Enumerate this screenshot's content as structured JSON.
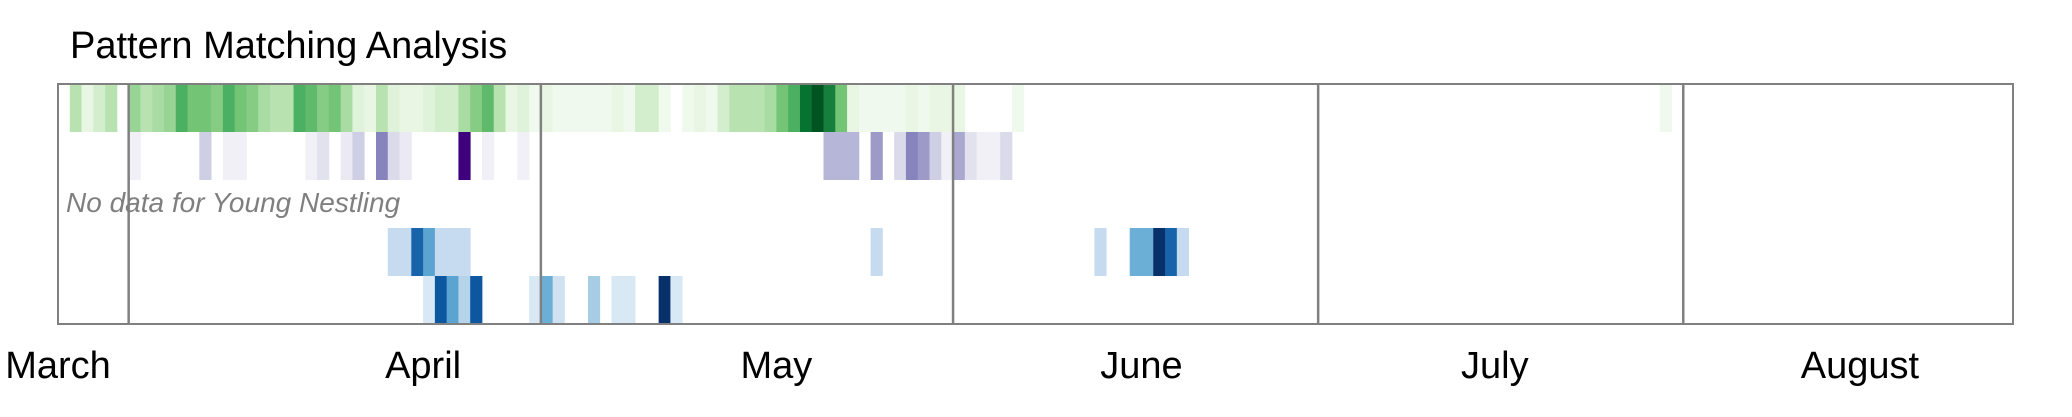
{
  "chart_data": {
    "type": "heatmap",
    "title": "Pattern Matching Analysis",
    "x_axis": {
      "unit": "day-of-year",
      "range": [
        60,
        226
      ],
      "tick_labels": [
        "March",
        "April",
        "May",
        "June",
        "July",
        "August"
      ],
      "tick_days": [
        60,
        91,
        121,
        152,
        182,
        213
      ],
      "month_boundaries": [
        66,
        101,
        136,
        167,
        198
      ]
    },
    "grid": false,
    "annotations": [
      {
        "row": "Young Nestling",
        "text": "No data for Young Nestling"
      }
    ],
    "series": [
      {
        "colormap": "Greens",
        "cells": [
          {
            "day": 61,
            "v": 0.3
          },
          {
            "day": 62,
            "v": 0.1
          },
          {
            "day": 63,
            "v": 0.2
          },
          {
            "day": 64,
            "v": 0.3
          },
          {
            "day": 66,
            "v": 0.4
          },
          {
            "day": 67,
            "v": 0.3
          },
          {
            "day": 68,
            "v": 0.35
          },
          {
            "day": 69,
            "v": 0.4
          },
          {
            "day": 70,
            "v": 0.6
          },
          {
            "day": 71,
            "v": 0.5
          },
          {
            "day": 72,
            "v": 0.5
          },
          {
            "day": 73,
            "v": 0.45
          },
          {
            "day": 74,
            "v": 0.6
          },
          {
            "day": 75,
            "v": 0.5
          },
          {
            "day": 76,
            "v": 0.45
          },
          {
            "day": 77,
            "v": 0.35
          },
          {
            "day": 78,
            "v": 0.3
          },
          {
            "day": 79,
            "v": 0.3
          },
          {
            "day": 80,
            "v": 0.6
          },
          {
            "day": 81,
            "v": 0.55
          },
          {
            "day": 82,
            "v": 0.45
          },
          {
            "day": 83,
            "v": 0.5
          },
          {
            "day": 84,
            "v": 0.35
          },
          {
            "day": 85,
            "v": 0.15
          },
          {
            "day": 86,
            "v": 0.1
          },
          {
            "day": 87,
            "v": 0.3
          },
          {
            "day": 88,
            "v": 0.15
          },
          {
            "day": 89,
            "v": 0.1
          },
          {
            "day": 90,
            "v": 0.1
          },
          {
            "day": 91,
            "v": 0.15
          },
          {
            "day": 92,
            "v": 0.2
          },
          {
            "day": 93,
            "v": 0.2
          },
          {
            "day": 94,
            "v": 0.35
          },
          {
            "day": 95,
            "v": 0.45
          },
          {
            "day": 96,
            "v": 0.55
          },
          {
            "day": 97,
            "v": 0.3
          },
          {
            "day": 98,
            "v": 0.1
          },
          {
            "day": 99,
            "v": 0.15
          },
          {
            "day": 100,
            "v": 0.05
          },
          {
            "day": 101,
            "v": 0.1
          },
          {
            "day": 102,
            "v": 0.05
          },
          {
            "day": 103,
            "v": 0.05
          },
          {
            "day": 104,
            "v": 0.05
          },
          {
            "day": 105,
            "v": 0.05
          },
          {
            "day": 106,
            "v": 0.05
          },
          {
            "day": 107,
            "v": 0.1
          },
          {
            "day": 108,
            "v": 0.05
          },
          {
            "day": 109,
            "v": 0.2
          },
          {
            "day": 110,
            "v": 0.2
          },
          {
            "day": 111,
            "v": 0.05
          },
          {
            "day": 113,
            "v": 0.05
          },
          {
            "day": 114,
            "v": 0.1
          },
          {
            "day": 115,
            "v": 0.05
          },
          {
            "day": 116,
            "v": 0.2
          },
          {
            "day": 117,
            "v": 0.3
          },
          {
            "day": 118,
            "v": 0.3
          },
          {
            "day": 119,
            "v": 0.3
          },
          {
            "day": 120,
            "v": 0.35
          },
          {
            "day": 121,
            "v": 0.5
          },
          {
            "day": 122,
            "v": 0.6
          },
          {
            "day": 123,
            "v": 0.85
          },
          {
            "day": 124,
            "v": 0.95
          },
          {
            "day": 125,
            "v": 0.8
          },
          {
            "day": 126,
            "v": 0.5
          },
          {
            "day": 127,
            "v": 0.1
          },
          {
            "day": 128,
            "v": 0.05
          },
          {
            "day": 129,
            "v": 0.05
          },
          {
            "day": 130,
            "v": 0.05
          },
          {
            "day": 131,
            "v": 0.05
          },
          {
            "day": 132,
            "v": 0.1
          },
          {
            "day": 133,
            "v": 0.05
          },
          {
            "day": 134,
            "v": 0.1
          },
          {
            "day": 135,
            "v": 0.1
          },
          {
            "day": 136,
            "v": 0.1
          },
          {
            "day": 141,
            "v": 0.05
          },
          {
            "day": 196,
            "v": 0.05
          }
        ]
      },
      {
        "colormap": "Purples",
        "cells": [
          {
            "day": 66,
            "v": 0.1
          },
          {
            "day": 72,
            "v": 0.3
          },
          {
            "day": 74,
            "v": 0.1
          },
          {
            "day": 75,
            "v": 0.1
          },
          {
            "day": 81,
            "v": 0.1
          },
          {
            "day": 82,
            "v": 0.2
          },
          {
            "day": 84,
            "v": 0.15
          },
          {
            "day": 85,
            "v": 0.3
          },
          {
            "day": 87,
            "v": 0.6
          },
          {
            "day": 88,
            "v": 0.25
          },
          {
            "day": 89,
            "v": 0.15
          },
          {
            "day": 94,
            "v": 1.0
          },
          {
            "day": 96,
            "v": 0.1
          },
          {
            "day": 99,
            "v": 0.1
          },
          {
            "day": 125,
            "v": 0.4
          },
          {
            "day": 126,
            "v": 0.4
          },
          {
            "day": 127,
            "v": 0.4
          },
          {
            "day": 129,
            "v": 0.5
          },
          {
            "day": 131,
            "v": 0.25
          },
          {
            "day": 132,
            "v": 0.6
          },
          {
            "day": 133,
            "v": 0.5
          },
          {
            "day": 134,
            "v": 0.3
          },
          {
            "day": 135,
            "v": 0.1
          },
          {
            "day": 136,
            "v": 0.45
          },
          {
            "day": 137,
            "v": 0.2
          },
          {
            "day": 138,
            "v": 0.1
          },
          {
            "day": 139,
            "v": 0.1
          },
          {
            "day": 140,
            "v": 0.25
          }
        ]
      },
      {
        "colormap": "Blues",
        "cells": []
      },
      {
        "colormap": "Blues",
        "cells": [
          {
            "day": 88,
            "v": 0.25
          },
          {
            "day": 89,
            "v": 0.25
          },
          {
            "day": 90,
            "v": 0.8
          },
          {
            "day": 91,
            "v": 0.55
          },
          {
            "day": 92,
            "v": 0.25
          },
          {
            "day": 93,
            "v": 0.25
          },
          {
            "day": 94,
            "v": 0.25
          },
          {
            "day": 129,
            "v": 0.25
          },
          {
            "day": 148,
            "v": 0.25
          },
          {
            "day": 151,
            "v": 0.5
          },
          {
            "day": 152,
            "v": 0.5
          },
          {
            "day": 153,
            "v": 1.0
          },
          {
            "day": 154,
            "v": 0.8
          },
          {
            "day": 155,
            "v": 0.25
          }
        ]
      },
      {
        "colormap": "Blues",
        "cells": [
          {
            "day": 91,
            "v": 0.15
          },
          {
            "day": 92,
            "v": 0.85
          },
          {
            "day": 93,
            "v": 0.55
          },
          {
            "day": 94,
            "v": 0.3
          },
          {
            "day": 95,
            "v": 0.85
          },
          {
            "day": 100,
            "v": 0.15
          },
          {
            "day": 101,
            "v": 0.5
          },
          {
            "day": 102,
            "v": 0.2
          },
          {
            "day": 105,
            "v": 0.35
          },
          {
            "day": 107,
            "v": 0.15
          },
          {
            "day": 108,
            "v": 0.15
          },
          {
            "day": 111,
            "v": 1.0
          },
          {
            "day": 112,
            "v": 0.15
          }
        ]
      }
    ]
  }
}
